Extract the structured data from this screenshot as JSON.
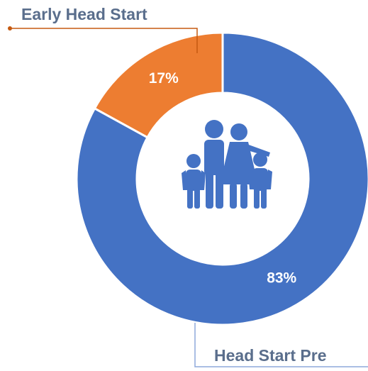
{
  "chart_data": {
    "type": "donut",
    "categories": [
      "Head Start Pre",
      "Early Head Start"
    ],
    "values": [
      83,
      17
    ],
    "value_labels": [
      "83%",
      "17%"
    ],
    "colors": [
      "#4472c4",
      "#ed7d31"
    ]
  }
}
